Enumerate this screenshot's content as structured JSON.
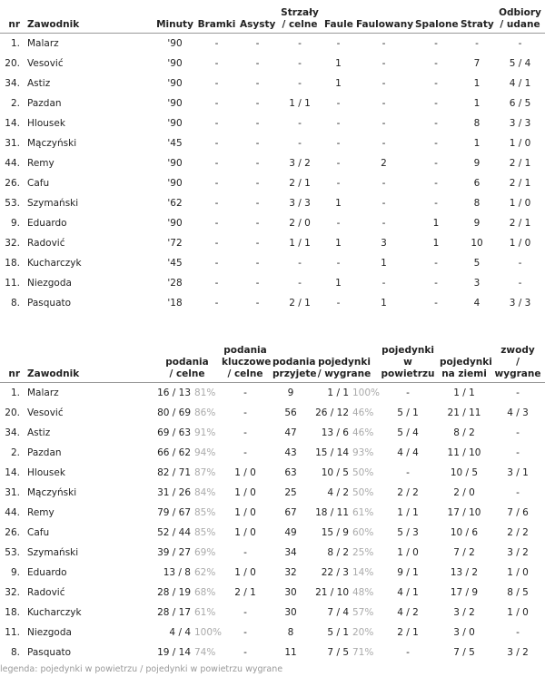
{
  "table_1": {
    "headers": [
      [
        "nr"
      ],
      [
        "Zawodnik"
      ],
      [
        "Minuty"
      ],
      [
        "Bramki"
      ],
      [
        "Asysty"
      ],
      [
        "Strzały",
        "/ celne"
      ],
      [
        "Faule"
      ],
      [
        "Faulowany"
      ],
      [
        "Spalone"
      ],
      [
        "Straty"
      ],
      [
        "Odbiory",
        "/ udane"
      ]
    ],
    "rows": [
      [
        "1.",
        "Malarz",
        "'90",
        "-",
        "-",
        "-",
        "-",
        "-",
        "-",
        "-",
        "-"
      ],
      [
        "20.",
        "Vesović",
        "'90",
        "-",
        "-",
        "-",
        "1",
        "-",
        "-",
        "7",
        "5 / 4"
      ],
      [
        "34.",
        "Astiz",
        "'90",
        "-",
        "-",
        "-",
        "1",
        "-",
        "-",
        "1",
        "4 / 1"
      ],
      [
        "2.",
        "Pazdan",
        "'90",
        "-",
        "-",
        "1 / 1",
        "-",
        "-",
        "-",
        "1",
        "6 / 5"
      ],
      [
        "14.",
        "Hlousek",
        "'90",
        "-",
        "-",
        "-",
        "-",
        "-",
        "-",
        "8",
        "3 / 3"
      ],
      [
        "31.",
        "Mączyński",
        "'45",
        "-",
        "-",
        "-",
        "-",
        "-",
        "-",
        "1",
        "1 / 0"
      ],
      [
        "44.",
        "Remy",
        "'90",
        "-",
        "-",
        "3 / 2",
        "-",
        "2",
        "-",
        "9",
        "2 / 1"
      ],
      [
        "26.",
        "Cafu",
        "'90",
        "-",
        "-",
        "2 / 1",
        "-",
        "-",
        "-",
        "6",
        "2 / 1"
      ],
      [
        "53.",
        "Szymański",
        "'62",
        "-",
        "-",
        "3 / 3",
        "1",
        "-",
        "-",
        "8",
        "1 / 0"
      ],
      [
        "9.",
        "Eduardo",
        "'90",
        "-",
        "-",
        "2 / 0",
        "-",
        "-",
        "1",
        "9",
        "2 / 1"
      ],
      [
        "32.",
        "Radović",
        "'72",
        "-",
        "-",
        "1 / 1",
        "1",
        "3",
        "1",
        "10",
        "1 / 0"
      ],
      [
        "18.",
        "Kucharczyk",
        "'45",
        "-",
        "-",
        "-",
        "-",
        "1",
        "-",
        "5",
        "-"
      ],
      [
        "11.",
        "Niezgoda",
        "'28",
        "-",
        "-",
        "-",
        "1",
        "-",
        "-",
        "3",
        "-"
      ],
      [
        "8.",
        "Pasquato",
        "'18",
        "-",
        "-",
        "2 / 1",
        "-",
        "1",
        "-",
        "4",
        "3 / 3"
      ]
    ]
  },
  "table_2": {
    "headers": [
      [
        "nr"
      ],
      [
        "Zawodnik"
      ],
      [
        "podania",
        "/ celne"
      ],
      [
        "podania",
        "kluczowe / celne"
      ],
      [
        "podania",
        "przyjete"
      ],
      [
        "pojedynki",
        "/ wygrane"
      ],
      [
        "pojedynki",
        "w powietrzu"
      ],
      [
        "pojedynki",
        "na ziemi"
      ],
      [
        "zwody",
        "/ wygrane"
      ]
    ],
    "rows": [
      [
        "1.",
        "Malarz",
        "16 / 13",
        "81%",
        "-",
        "9",
        "1 / 1",
        "100%",
        "-",
        "1 / 1",
        "-"
      ],
      [
        "20.",
        "Vesović",
        "80 / 69",
        "86%",
        "-",
        "56",
        "26 / 12",
        "46%",
        "5 / 1",
        "21 / 11",
        "4 / 3"
      ],
      [
        "34.",
        "Astiz",
        "69 / 63",
        "91%",
        "-",
        "47",
        "13 / 6",
        "46%",
        "5 / 4",
        "8 / 2",
        "-"
      ],
      [
        "2.",
        "Pazdan",
        "66 / 62",
        "94%",
        "-",
        "43",
        "15 / 14",
        "93%",
        "4 / 4",
        "11 / 10",
        "-"
      ],
      [
        "14.",
        "Hlousek",
        "82 / 71",
        "87%",
        "1 / 0",
        "63",
        "10 / 5",
        "50%",
        "-",
        "10 / 5",
        "3 / 1"
      ],
      [
        "31.",
        "Mączyński",
        "31 / 26",
        "84%",
        "1 / 0",
        "25",
        "4 / 2",
        "50%",
        "2 / 2",
        "2 / 0",
        "-"
      ],
      [
        "44.",
        "Remy",
        "79 / 67",
        "85%",
        "1 / 0",
        "67",
        "18 / 11",
        "61%",
        "1 / 1",
        "17 / 10",
        "7 / 6"
      ],
      [
        "26.",
        "Cafu",
        "52 / 44",
        "85%",
        "1 / 0",
        "49",
        "15 / 9",
        "60%",
        "5 / 3",
        "10 / 6",
        "2 / 2"
      ],
      [
        "53.",
        "Szymański",
        "39 / 27",
        "69%",
        "-",
        "34",
        "8 / 2",
        "25%",
        "1 / 0",
        "7 / 2",
        "3 / 2"
      ],
      [
        "9.",
        "Eduardo",
        "13 / 8",
        "62%",
        "1 / 0",
        "32",
        "22 / 3",
        "14%",
        "9 / 1",
        "13 / 2",
        "1 / 0"
      ],
      [
        "32.",
        "Radović",
        "28 / 19",
        "68%",
        "2 / 1",
        "30",
        "21 / 10",
        "48%",
        "4 / 1",
        "17 / 9",
        "8 / 5"
      ],
      [
        "18.",
        "Kucharczyk",
        "28 / 17",
        "61%",
        "-",
        "30",
        "7 / 4",
        "57%",
        "4 / 2",
        "3 / 2",
        "1 / 0"
      ],
      [
        "11.",
        "Niezgoda",
        "4 / 4",
        "100%",
        "-",
        "8",
        "5 / 1",
        "20%",
        "2 / 1",
        "3 / 0",
        "-"
      ],
      [
        "8.",
        "Pasquato",
        "19 / 14",
        "74%",
        "-",
        "11",
        "7 / 5",
        "71%",
        "-",
        "7 / 5",
        "3 / 2"
      ]
    ]
  },
  "legend": "legenda: pojedynki w powietrzu / pojedynki w powietrzu wygrane"
}
